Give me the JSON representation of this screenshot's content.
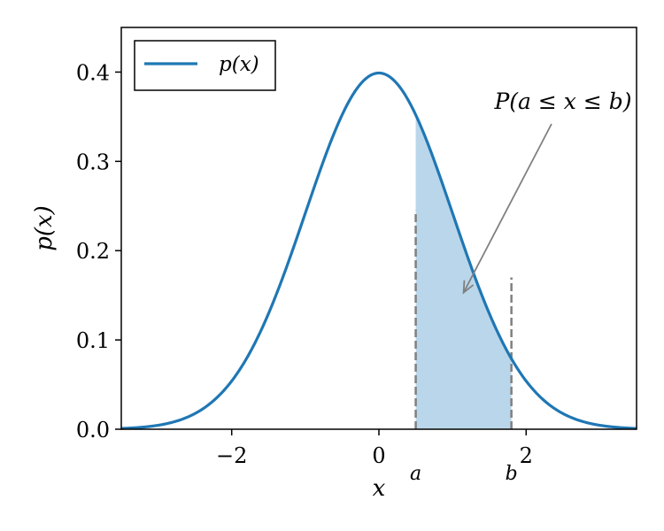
{
  "chart_data": {
    "type": "area",
    "title": "",
    "xlabel": "x",
    "ylabel": "p(x)",
    "xlim": [
      -3.5,
      3.5
    ],
    "ylim": [
      0,
      0.45
    ],
    "x_ticks": [
      -2,
      0,
      2
    ],
    "x_tick_labels": [
      "−2",
      "0",
      "2"
    ],
    "y_ticks": [
      0.0,
      0.1,
      0.2,
      0.3,
      0.4
    ],
    "y_tick_labels": [
      "0.0",
      "0.1",
      "0.2",
      "0.3",
      "0.4"
    ],
    "grid": false,
    "series": [
      {
        "name": "p(x)",
        "color": "#1f77b4",
        "description": "standard normal density, mean 0, std 1"
      }
    ],
    "legend": {
      "placement": "upper-left",
      "entries": [
        "p(x)"
      ]
    },
    "shaded_region": {
      "from": 0.5,
      "to": 1.8,
      "color": "#bad6ea"
    },
    "markers": [
      {
        "label": "a",
        "x": 0.5
      },
      {
        "label": "b",
        "x": 1.8
      }
    ],
    "annotation": {
      "text": "P(a ≤ x ≤ b)",
      "points_to": [
        1.15,
        0.153
      ]
    }
  }
}
